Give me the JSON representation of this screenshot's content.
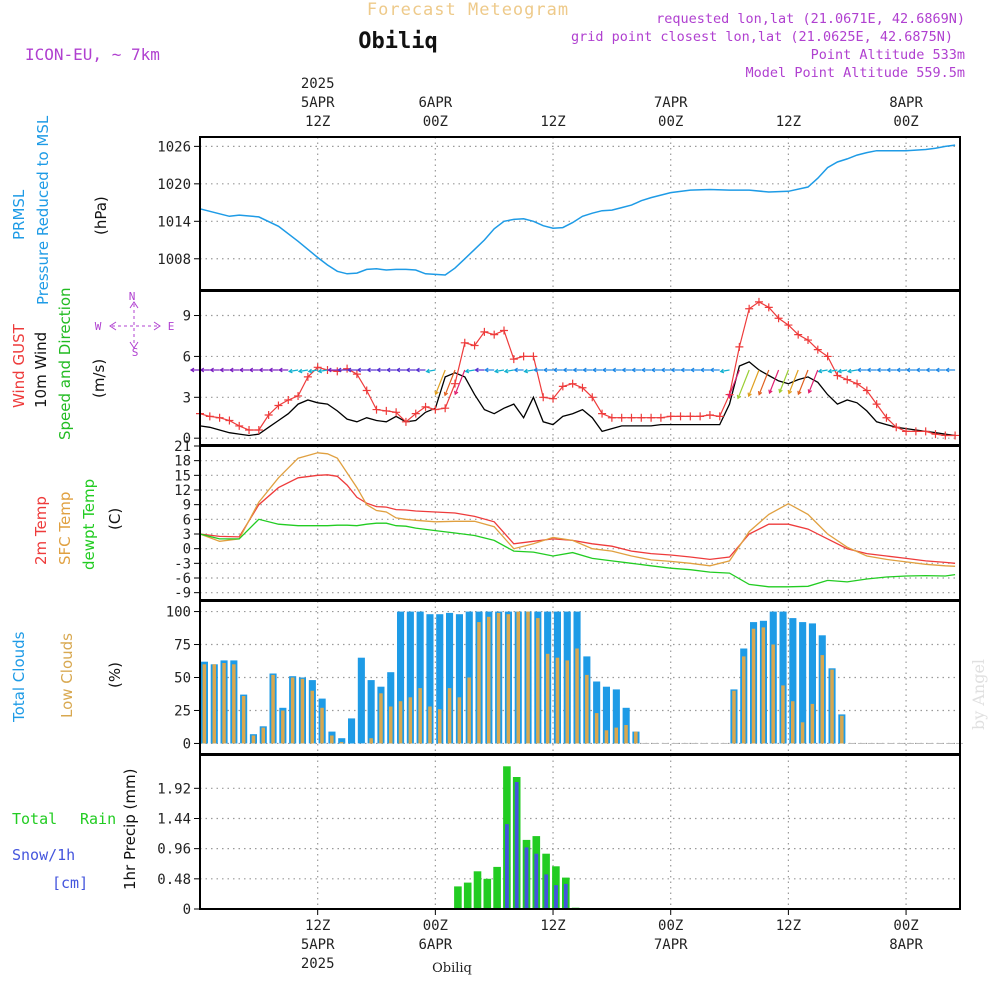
{
  "header": {
    "title": "Forecast Meteogram",
    "station": "Obiliq",
    "model": "ICON-EU, ~ 7km",
    "info": [
      "requested lon,lat (21.0671E, 42.6869N)",
      "grid point closest lon,lat (21.0625E, 42.6875N)",
      "Point Altitude 533m",
      "Model Point Altitude 559.5m"
    ],
    "watermark": "by Angel",
    "bottom_station": "Obiliq"
  },
  "time_axis": {
    "top_ticks": [
      {
        "h": 12,
        "lines": [
          "2025",
          "5APR",
          "12Z"
        ]
      },
      {
        "h": 24,
        "lines": [
          "6APR",
          "00Z"
        ]
      },
      {
        "h": 36,
        "lines": [
          "12Z"
        ]
      },
      {
        "h": 48,
        "lines": [
          "7APR",
          "00Z"
        ]
      },
      {
        "h": 60,
        "lines": [
          "12Z"
        ]
      },
      {
        "h": 72,
        "lines": [
          "8APR",
          "00Z"
        ]
      }
    ],
    "bottom_ticks": [
      {
        "h": 12,
        "lines": [
          "12Z",
          "5APR",
          "2025"
        ]
      },
      {
        "h": 24,
        "lines": [
          "00Z",
          "6APR"
        ]
      },
      {
        "h": 36,
        "lines": [
          "12Z"
        ]
      },
      {
        "h": 48,
        "lines": [
          "00Z",
          "7APR"
        ]
      },
      {
        "h": 60,
        "lines": [
          "12Z"
        ]
      },
      {
        "h": 72,
        "lines": [
          "00Z",
          "8APR"
        ]
      }
    ]
  },
  "colors": {
    "pressure": "#1e9be6",
    "gust": "#ee3b3b",
    "wind": "#000000",
    "wind_dir": "#22bb22",
    "t2m": "#ee3b3b",
    "tsfc": "#e0a040",
    "dewpt": "#22cc22",
    "total_clouds": "#1e9be6",
    "low_clouds": "#d8a850",
    "rain": "#22cc22",
    "snow": "#4455dd",
    "compass": "#b040d0"
  },
  "panels": {
    "pressure": {
      "labels": [
        "PRMSL",
        "Pressure Reduced to MSL",
        "(hPa)"
      ]
    },
    "wind": {
      "labels": [
        "Wind GUST",
        "10m Wind",
        "Speed and Direction",
        "(m/s)"
      ],
      "compass": [
        "N",
        "W",
        "E",
        "S"
      ]
    },
    "temp": {
      "labels": [
        "2m Temp",
        "SFC Temp",
        "dewpt Temp",
        "(C)"
      ]
    },
    "clouds": {
      "labels": [
        "Total Clouds",
        "Low Clouds",
        "(%)"
      ]
    },
    "precip": {
      "labels": [
        "Total",
        "Rain",
        "Snow/1h",
        "[cm]",
        "1hr Precip (mm)"
      ]
    }
  },
  "chart_data": [
    {
      "type": "line",
      "title": "PRMSL Pressure Reduced to MSL",
      "ylabel": "(hPa)",
      "ylim": [
        1003,
        1027.5
      ],
      "yticks": [
        1008,
        1014,
        1020,
        1026
      ],
      "grid": true,
      "x": [
        0,
        2,
        3,
        4,
        6,
        8,
        10,
        12,
        13,
        14,
        15,
        16,
        17,
        18,
        19,
        20,
        21,
        22,
        23,
        24,
        25,
        26,
        27,
        28,
        29,
        30,
        31,
        32,
        33,
        34,
        35,
        36,
        37,
        38,
        39,
        40,
        41,
        42,
        43,
        44,
        45,
        46,
        48,
        50,
        52,
        54,
        56,
        58,
        60,
        62,
        63,
        64,
        65,
        66,
        67,
        68,
        69,
        70,
        71,
        72,
        73,
        74,
        75,
        76,
        77
      ],
      "series": [
        {
          "name": "PRMSL",
          "values": [
            1016,
            1015.2,
            1014.8,
            1015,
            1014.7,
            1013.2,
            1010.8,
            1008.2,
            1007,
            1006,
            1005.6,
            1005.7,
            1006.3,
            1006.4,
            1006.2,
            1006.3,
            1006.3,
            1006.2,
            1005.6,
            1005.5,
            1005.4,
            1006.5,
            1008,
            1009.5,
            1011,
            1012.8,
            1014,
            1014.3,
            1014.4,
            1014,
            1013.3,
            1012.9,
            1013,
            1013.8,
            1014.8,
            1015.3,
            1015.7,
            1015.8,
            1016.2,
            1016.6,
            1017.3,
            1017.8,
            1018.6,
            1019,
            1019.1,
            1019,
            1019,
            1018.7,
            1018.8,
            1019.5,
            1020.9,
            1022.6,
            1023.5,
            1024,
            1024.6,
            1025,
            1025.3,
            1025.3,
            1025.3,
            1025.3,
            1025.4,
            1025.5,
            1025.7,
            1026,
            1026.2
          ]
        }
      ]
    },
    {
      "type": "line",
      "title": "Wind GUST / 10m Wind Speed and Direction",
      "ylabel": "(m/s)",
      "ylim": [
        -0.5,
        10.8
      ],
      "yticks": [
        0,
        3,
        6,
        9
      ],
      "grid": true,
      "x": [
        0,
        1,
        2,
        3,
        4,
        5,
        6,
        7,
        8,
        9,
        10,
        11,
        12,
        13,
        14,
        15,
        16,
        17,
        18,
        19,
        20,
        21,
        22,
        23,
        24,
        25,
        26,
        27,
        28,
        29,
        30,
        31,
        32,
        33,
        34,
        35,
        36,
        37,
        38,
        39,
        40,
        41,
        42,
        43,
        44,
        45,
        46,
        47,
        48,
        49,
        50,
        51,
        52,
        53,
        54,
        55,
        56,
        57,
        58,
        59,
        60,
        61,
        62,
        63,
        64,
        65,
        66,
        67,
        68,
        69,
        70,
        71,
        72,
        73,
        74,
        75,
        76,
        77
      ],
      "series": [
        {
          "name": "Wind GUST",
          "values": [
            1.8,
            1.6,
            1.5,
            1.3,
            0.9,
            0.6,
            0.6,
            1.7,
            2.4,
            2.8,
            3.1,
            4.5,
            5.2,
            5,
            4.9,
            5.1,
            4.7,
            3.5,
            2.1,
            2,
            1.9,
            1.2,
            1.8,
            2.3,
            2.1,
            2.2,
            4,
            7,
            6.8,
            7.8,
            7.6,
            7.9,
            5.8,
            6,
            6,
            3,
            2.9,
            3.8,
            4,
            3.7,
            3,
            1.8,
            1.5,
            1.5,
            1.5,
            1.5,
            1.5,
            1.5,
            1.6,
            1.6,
            1.6,
            1.6,
            1.7,
            1.6,
            3.2,
            6.7,
            9.5,
            10,
            9.6,
            8.8,
            8.3,
            7.6,
            7.2,
            6.5,
            6,
            4.6,
            4.3,
            4,
            3.5,
            2.5,
            1.5,
            0.8,
            0.5,
            0.5,
            0.5,
            0.3,
            0.2,
            0.2
          ]
        },
        {
          "name": "10m Wind",
          "values": [
            0.9,
            0.8,
            0.6,
            0.4,
            0.3,
            0.2,
            0.3,
            0.8,
            1.3,
            1.8,
            2.5,
            2.8,
            2.6,
            2.5,
            2,
            1.4,
            1.2,
            1.5,
            1.3,
            1.2,
            1.6,
            1.2,
            1.3,
            1.9,
            2.2,
            4.5,
            4.8,
            4.5,
            3.2,
            2.1,
            1.8,
            2.2,
            2.5,
            1.5,
            3,
            1.2,
            1,
            1.6,
            1.8,
            2.1,
            1.5,
            0.5,
            0.7,
            0.9,
            0.9,
            0.9,
            0.9,
            1,
            1,
            1,
            1,
            1,
            1,
            1,
            2.5,
            5.3,
            5.6,
            5,
            4.6,
            4.2,
            4,
            4.3,
            4.5,
            4.1,
            3.2,
            2.5,
            2.8,
            2.6,
            2,
            1.2,
            1,
            0.8,
            0.7,
            0.6,
            0.5,
            0.4,
            0.3,
            0.2
          ]
        }
      ]
    },
    {
      "type": "line",
      "title": "2m Temp / SFC Temp / dewpt Temp",
      "ylabel": "(C)",
      "ylim": [
        -10.5,
        21
      ],
      "yticks": [
        -9,
        -6,
        -3,
        0,
        3,
        6,
        9,
        12,
        15,
        18,
        21
      ],
      "grid": true,
      "x": [
        0,
        2,
        4,
        6,
        8,
        10,
        12,
        13,
        14,
        15,
        16,
        17,
        18,
        19,
        20,
        21,
        22,
        24,
        26,
        28,
        30,
        32,
        34,
        36,
        38,
        40,
        42,
        44,
        46,
        48,
        50,
        52,
        54,
        56,
        58,
        60,
        62,
        64,
        66,
        68,
        70,
        72,
        74,
        76,
        77
      ],
      "series": [
        {
          "name": "2m Temp",
          "values": [
            3,
            2.5,
            2.4,
            9,
            12.5,
            14.5,
            15,
            15.1,
            14.8,
            13,
            10.5,
            9.3,
            8.6,
            8.5,
            8,
            7.9,
            7.7,
            7.5,
            7.3,
            6.6,
            5.5,
            1,
            1.5,
            2,
            1.7,
            1,
            0.5,
            -0.5,
            -1,
            -1.3,
            -1.7,
            -2.2,
            -1.7,
            3,
            5,
            5,
            4,
            2,
            0,
            -1,
            -1.5,
            -2,
            -2.5,
            -2.8,
            -3
          ]
        },
        {
          "name": "SFC Temp",
          "values": [
            3,
            1.5,
            2,
            9.5,
            14.5,
            18.5,
            19.6,
            19.4,
            18.5,
            15.5,
            12.5,
            9,
            7.8,
            7.5,
            6.3,
            6,
            5.8,
            5.5,
            5.6,
            5.6,
            4.5,
            0,
            1,
            2.3,
            1.7,
            0,
            -0.5,
            -1.5,
            -2.3,
            -2.6,
            -3,
            -3.5,
            -2.5,
            3.5,
            7,
            9.2,
            7,
            3,
            0.3,
            -1.5,
            -2.2,
            -2.7,
            -3.2,
            -3.5,
            -3.6
          ]
        },
        {
          "name": "dewpt Temp",
          "values": [
            3,
            2,
            2,
            6,
            5,
            4.7,
            4.7,
            4.7,
            4.8,
            4.8,
            4.7,
            5,
            5.2,
            5.2,
            4.7,
            4.6,
            4.2,
            3.7,
            3.2,
            2.7,
            1.7,
            -0.5,
            -0.7,
            -1.5,
            -0.8,
            -2,
            -2.5,
            -3,
            -3.5,
            -4,
            -4.3,
            -4.8,
            -5,
            -7.3,
            -7.8,
            -7.8,
            -7.7,
            -6.5,
            -6.8,
            -6.2,
            -5.8,
            -5.6,
            -5.5,
            -5.6,
            -5.3
          ]
        }
      ]
    },
    {
      "type": "bar",
      "title": "Total Clouds / Low Clouds",
      "ylabel": "(%)",
      "ylim": [
        -8,
        108
      ],
      "yticks": [
        0,
        25,
        50,
        75,
        100
      ],
      "grid": true,
      "x": [
        0,
        1,
        2,
        3,
        4,
        5,
        6,
        7,
        8,
        9,
        10,
        11,
        12,
        13,
        14,
        15,
        16,
        17,
        18,
        19,
        20,
        21,
        22,
        23,
        24,
        25,
        26,
        27,
        28,
        29,
        30,
        31,
        32,
        33,
        34,
        35,
        36,
        37,
        38,
        39,
        40,
        41,
        42,
        43,
        44,
        45,
        46,
        47,
        48,
        49,
        50,
        51,
        52,
        53,
        54,
        55,
        56,
        57,
        58,
        59,
        60,
        61,
        62,
        63,
        64,
        65,
        66,
        67,
        68,
        69,
        70,
        71,
        72,
        73,
        74,
        75,
        76,
        77
      ],
      "series": [
        {
          "name": "Total Clouds",
          "values": [
            62,
            60,
            63,
            63,
            37,
            7,
            13,
            53,
            27,
            51,
            50,
            48,
            34,
            9,
            4,
            19,
            65,
            48,
            43,
            54,
            100,
            100,
            100,
            98,
            98,
            99,
            98,
            100,
            100,
            100,
            100,
            100,
            100,
            100,
            100,
            100,
            100,
            100,
            100,
            66,
            47,
            43,
            41,
            27,
            9,
            0,
            0,
            0,
            0,
            0,
            0,
            0,
            0,
            0,
            41,
            72,
            92,
            93,
            100,
            100,
            95,
            92,
            91,
            82,
            57,
            22,
            0,
            0,
            0,
            0,
            0,
            0,
            0,
            0,
            0,
            0,
            0,
            0
          ]
        },
        {
          "name": "Low Clouds",
          "values": [
            60,
            60,
            61,
            60,
            36,
            6,
            12,
            52,
            25,
            50,
            49,
            40,
            27,
            6,
            1,
            0,
            0,
            4,
            38,
            28,
            32,
            35,
            42,
            28,
            26,
            42,
            35,
            50,
            92,
            96,
            99,
            98,
            100,
            100,
            95,
            68,
            65,
            63,
            72,
            52,
            23,
            10,
            12,
            14,
            9,
            0,
            0,
            0,
            0,
            0,
            0,
            0,
            0,
            0,
            40,
            66,
            87,
            88,
            75,
            44,
            32,
            16,
            30,
            67,
            56,
            21,
            0,
            0,
            0,
            0,
            0,
            0,
            0,
            0,
            0,
            0,
            0,
            0
          ]
        }
      ]
    },
    {
      "type": "bar",
      "title": "1hr Precip",
      "ylabel": "1hr Precip (mm)",
      "ylim": [
        0,
        2.45
      ],
      "yticks": [
        0,
        0.48,
        0.96,
        1.44,
        1.92
      ],
      "grid": true,
      "x": [
        26,
        27,
        28,
        29,
        30,
        31,
        32,
        33,
        34,
        35,
        36,
        37,
        38
      ],
      "series": [
        {
          "name": "Total Rain",
          "values": [
            0.36,
            0.42,
            0.6,
            0.48,
            0.67,
            2.27,
            2.1,
            1.1,
            1.16,
            0.88,
            0.68,
            0.5,
            0.02
          ]
        },
        {
          "name": "Snow/1h",
          "values": [
            0,
            0,
            0,
            0,
            0,
            1.35,
            2.02,
            0.98,
            0.88,
            0.55,
            0.38,
            0.4,
            0
          ]
        }
      ]
    }
  ]
}
